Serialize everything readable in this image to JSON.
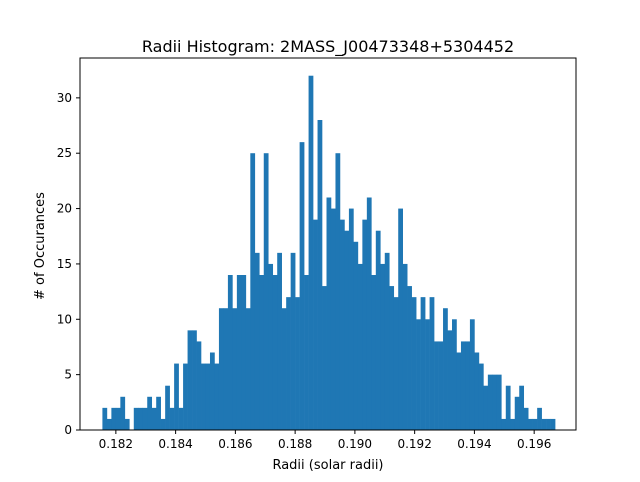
{
  "chart_data": {
    "type": "bar",
    "title": "Radii Histogram: 2MASS_J00473348+5304452",
    "xlabel": "Radii (solar radii)",
    "ylabel": "# of Occurances",
    "xlim": [
      0.1808,
      0.1974
    ],
    "ylim": [
      0,
      33.6
    ],
    "xticks": [
      "0.182",
      "0.184",
      "0.186",
      "0.188",
      "0.190",
      "0.192",
      "0.194",
      "0.196"
    ],
    "xtick_values": [
      0.182,
      0.184,
      0.186,
      0.188,
      0.19,
      0.192,
      0.194,
      0.196
    ],
    "yticks": [
      "0",
      "5",
      "10",
      "15",
      "20",
      "25",
      "30"
    ],
    "ytick_values": [
      0,
      5,
      10,
      15,
      20,
      25,
      30
    ],
    "bin_start": 0.18155,
    "bin_width": 0.00015,
    "counts": [
      2,
      1,
      2,
      2,
      3,
      1,
      0,
      2,
      2,
      2,
      3,
      2,
      3,
      1,
      4,
      2,
      6,
      2,
      6,
      9,
      9,
      8,
      6,
      6,
      7,
      6,
      11,
      11,
      14,
      11,
      14,
      14,
      11,
      25,
      16,
      14,
      25,
      15,
      14,
      16,
      11,
      12,
      16,
      12,
      26,
      14,
      32,
      19,
      28,
      13,
      21,
      20,
      25,
      19,
      18,
      20,
      17,
      15,
      19,
      21,
      14,
      18,
      15,
      16,
      13,
      12,
      20,
      15,
      13,
      12,
      10,
      12,
      10,
      12,
      8,
      8,
      11,
      9,
      10,
      7,
      8,
      8,
      10,
      7,
      6,
      4,
      5,
      5,
      5,
      1,
      4,
      1,
      3,
      4,
      2,
      1,
      1,
      2,
      1,
      1,
      1
    ]
  },
  "colors": {
    "bars": "#1f77b4",
    "axes": "#000000",
    "background": "#ffffff"
  }
}
